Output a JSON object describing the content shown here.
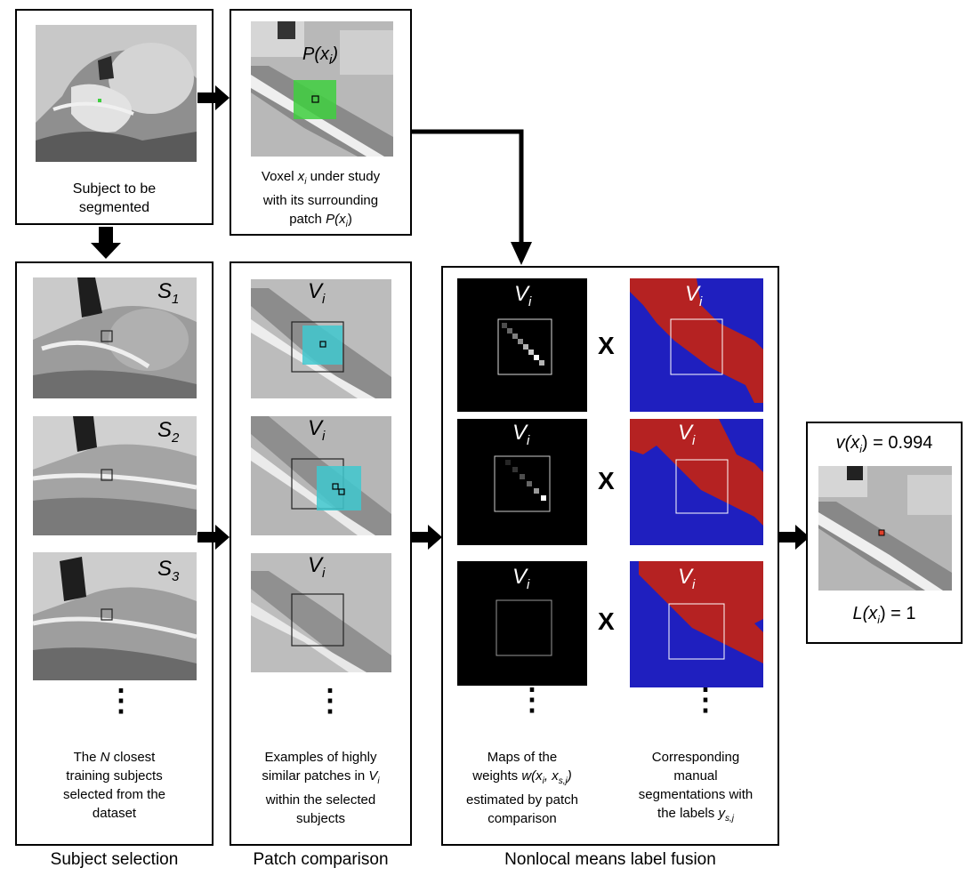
{
  "boxes": {
    "subject": {
      "caption_line1": "Subject to be",
      "caption_line2": "segmented"
    },
    "voxel": {
      "patch_label": "P(x",
      "patch_label_sub": "i",
      "patch_label_end": ")",
      "caption_line1_a": "Voxel ",
      "caption_line1_var": "x",
      "caption_line1_sub": "i",
      "caption_line1_b": " under study",
      "caption_line2": "with its surrounding",
      "caption_line3_a": "patch ",
      "caption_line3_var": "P",
      "caption_line3_b": "(x",
      "caption_line3_sub": "i",
      "caption_line3_c": ")"
    },
    "selection": {
      "subjects": [
        {
          "letter": "S",
          "sub": "1"
        },
        {
          "letter": "S",
          "sub": "2"
        },
        {
          "letter": "S",
          "sub": "3"
        }
      ],
      "dots": "⋮",
      "caption_line1_a": "The ",
      "caption_line1_var": "N",
      "caption_line1_b": " closest",
      "caption_line2": "training subjects",
      "caption_line3": "selected from the",
      "caption_line4": "dataset"
    },
    "patch": {
      "v_letter": "V",
      "v_sub": "i",
      "dots": "⋮",
      "caption_line1": "Examples of highly",
      "caption_line2_a": "similar patches in ",
      "caption_line2_var": "V",
      "caption_line2_sub": "i",
      "caption_line3": "within the selected",
      "caption_line4": "subjects"
    },
    "fusion": {
      "v_letter": "V",
      "v_sub": "i",
      "times": "X",
      "dots": "⋮",
      "weights_caption_line1": "Maps of the",
      "weights_caption_line2_a": "weights ",
      "weights_caption_line2_var": "w(x",
      "weights_caption_line2_sub1": "i",
      "weights_caption_line2_mid": ", x",
      "weights_caption_line2_sub2": "s,j",
      "weights_caption_line2_end": ")",
      "weights_caption_line3": "estimated by patch",
      "weights_caption_line4": "comparison",
      "seg_caption_line1": "Corresponding",
      "seg_caption_line2": "manual",
      "seg_caption_line3": "segmentations with",
      "seg_caption_line4_a": "the labels ",
      "seg_caption_line4_var": "y",
      "seg_caption_line4_sub": "s,j"
    },
    "result": {
      "v_label": "v(x",
      "v_sub": "i",
      "v_value": ") = 0.994",
      "l_label": "L(x",
      "l_sub": "i",
      "l_value": ") = 1"
    }
  },
  "sections": {
    "subject_selection": "Subject selection",
    "patch_comparison": "Patch comparison",
    "label_fusion": "Nonlocal means label fusion"
  },
  "colors": {
    "patch_green": "#3ecf3e",
    "patch_cyan": "#3fc8cf",
    "seg_red": "#b52222",
    "seg_blue": "#1f1fbf",
    "center_red": "#e0402a"
  },
  "icons": {
    "arrow": "thick-right-arrow",
    "dots": "vertical-ellipsis"
  }
}
